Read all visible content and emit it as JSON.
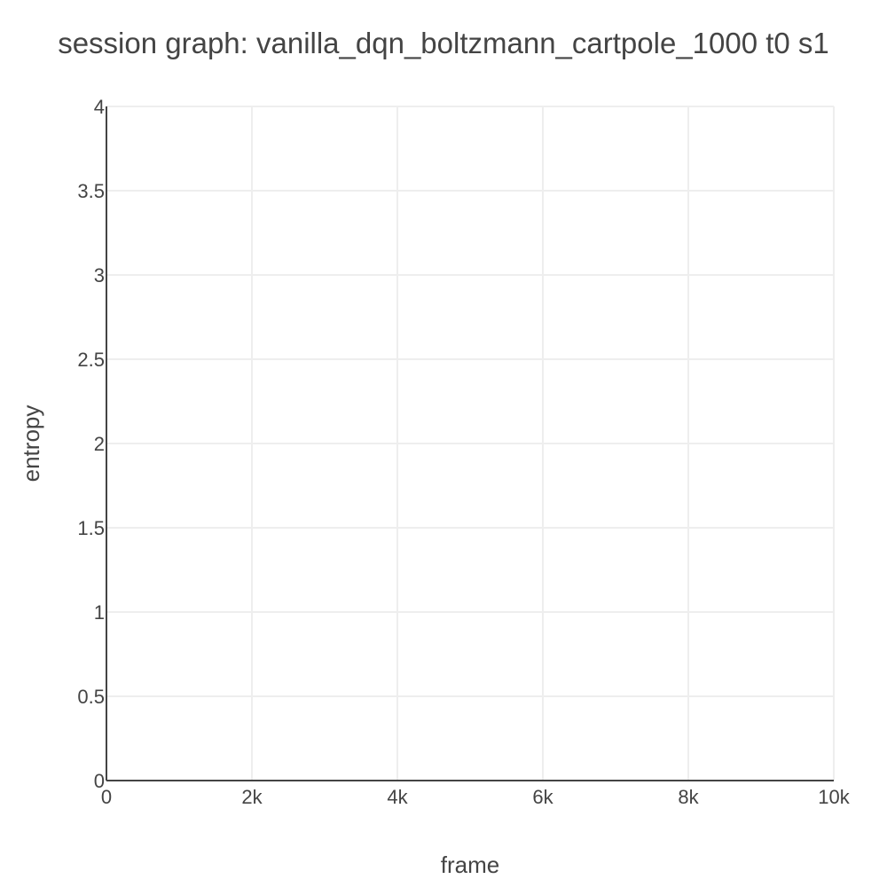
{
  "chart_data": {
    "type": "line",
    "title": "session graph: vanilla_dqn_boltzmann_cartpole_1000 t0 s1",
    "xlabel": "frame",
    "ylabel": "entropy",
    "xlim": [
      0,
      10000
    ],
    "ylim": [
      0,
      4
    ],
    "x_ticks": [
      {
        "value": 0,
        "label": "0"
      },
      {
        "value": 2000,
        "label": "2k"
      },
      {
        "value": 4000,
        "label": "4k"
      },
      {
        "value": 6000,
        "label": "6k"
      },
      {
        "value": 8000,
        "label": "8k"
      },
      {
        "value": 10000,
        "label": "10k"
      }
    ],
    "y_ticks": [
      {
        "value": 0,
        "label": "0"
      },
      {
        "value": 0.5,
        "label": "0.5"
      },
      {
        "value": 1,
        "label": "1"
      },
      {
        "value": 1.5,
        "label": "1.5"
      },
      {
        "value": 2,
        "label": "2"
      },
      {
        "value": 2.5,
        "label": "2.5"
      },
      {
        "value": 3,
        "label": "3"
      },
      {
        "value": 3.5,
        "label": "3.5"
      },
      {
        "value": 4,
        "label": "4"
      }
    ],
    "grid": true,
    "series": [],
    "colors": {
      "text": "#444444",
      "grid": "#eeeeee",
      "axis": "#444444",
      "background": "#ffffff"
    }
  }
}
